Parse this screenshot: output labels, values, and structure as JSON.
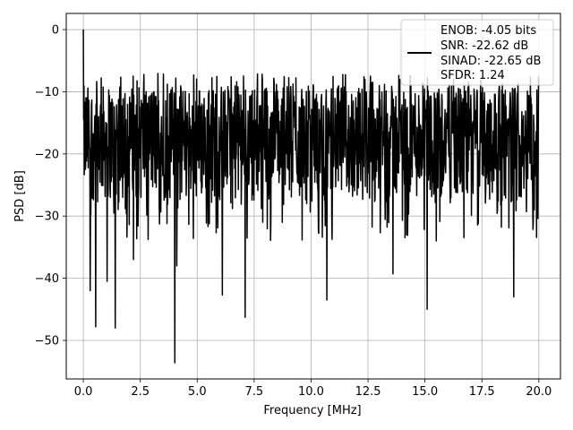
{
  "chart_data": {
    "type": "line",
    "xlabel": "Frequency [MHz]",
    "ylabel": "PSD [dB]",
    "xlim": [
      -0.75,
      20.95
    ],
    "ylim": [
      -56.2,
      2.6
    ],
    "x_ticks": [
      0.0,
      2.5,
      5.0,
      7.5,
      10.0,
      12.5,
      15.0,
      17.5,
      20.0
    ],
    "x_tick_labels": [
      "0.0",
      "2.5",
      "5.0",
      "7.5",
      "10.0",
      "12.5",
      "15.0",
      "17.5",
      "20.0"
    ],
    "y_ticks": [
      0,
      -10,
      -20,
      -30,
      -40,
      -50
    ],
    "y_tick_labels": [
      "0",
      "−10",
      "−20",
      "−30",
      "−40",
      "−50"
    ],
    "grid": true,
    "legend_position": "top-right",
    "series_color": "#000000",
    "legend": {
      "lines": [
        "ENOB: -4.05 bits",
        "SNR: -22.62 dB",
        "SINAD: -22.65 dB",
        "SFDR: 1.24"
      ]
    },
    "series": [
      {
        "x_range": [
          0.0,
          20.0
        ],
        "noise_band": [
          -28,
          -9
        ],
        "peak": {
          "x": 0.0,
          "y": 0.0
        },
        "notable_points": [
          {
            "x": 0.08,
            "y": -22.5
          },
          {
            "x": 0.3,
            "y": -42.0
          },
          {
            "x": 0.55,
            "y": -47.8
          },
          {
            "x": 1.05,
            "y": -40.5
          },
          {
            "x": 1.4,
            "y": -48.0
          },
          {
            "x": 2.2,
            "y": -37.0
          },
          {
            "x": 4.02,
            "y": -53.6
          },
          {
            "x": 4.1,
            "y": -38.0
          },
          {
            "x": 6.1,
            "y": -42.7
          },
          {
            "x": 7.1,
            "y": -46.3
          },
          {
            "x": 10.7,
            "y": -43.5
          },
          {
            "x": 13.6,
            "y": -39.3
          },
          {
            "x": 15.1,
            "y": -45.0
          },
          {
            "x": 15.5,
            "y": -34.0
          },
          {
            "x": 18.9,
            "y": -43.0
          },
          {
            "x": 19.8,
            "y": -29.0
          }
        ]
      }
    ]
  }
}
